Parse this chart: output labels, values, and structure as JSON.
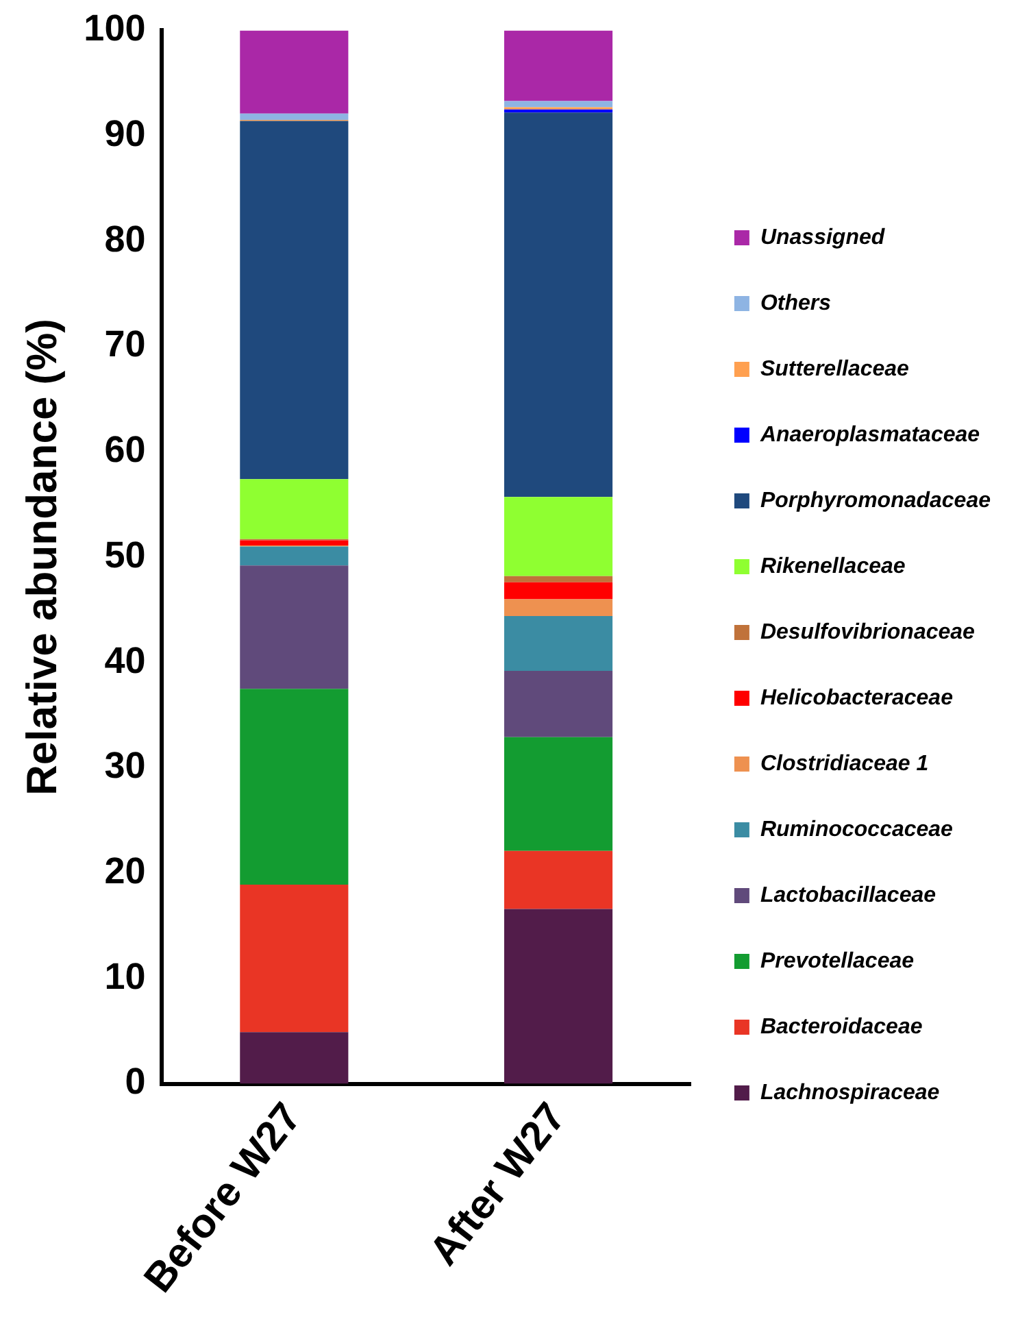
{
  "chart_data": {
    "type": "bar",
    "stacked": true,
    "ylabel": "Relative abundance (%)",
    "categories": [
      "Before W27",
      "After W27"
    ],
    "ylim": [
      0,
      100
    ],
    "yticks": [
      0,
      10,
      20,
      30,
      40,
      50,
      60,
      70,
      80,
      90,
      100
    ],
    "grid": false,
    "legend": "right",
    "series": [
      {
        "name": "Lachnospiraceae",
        "color": "#521c4a",
        "values": [
          4.9,
          16.6
        ]
      },
      {
        "name": "Bacteroidaceae",
        "color": "#e93525",
        "values": [
          14.0,
          5.5
        ]
      },
      {
        "name": "Prevotellaceae",
        "color": "#139c31",
        "values": [
          18.6,
          10.8
        ]
      },
      {
        "name": "Lactobacillaceae",
        "color": "#604a7b",
        "values": [
          11.7,
          6.3
        ]
      },
      {
        "name": "Ruminococcaceae",
        "color": "#3b8ca3",
        "values": [
          1.8,
          5.2
        ]
      },
      {
        "name": "Clostridiaceae 1",
        "color": "#ee9150",
        "values": [
          0.1,
          1.6
        ]
      },
      {
        "name": "Helicobacteraceae",
        "color": "#ff0000",
        "values": [
          0.5,
          1.6
        ]
      },
      {
        "name": "Desulfovibrionaceae",
        "color": "#c0723a",
        "values": [
          0.1,
          0.6
        ]
      },
      {
        "name": "Rikenellaceae",
        "color": "#8fff31",
        "values": [
          5.7,
          7.5
        ]
      },
      {
        "name": "Porphyromonadaceae",
        "color": "#1f497d",
        "values": [
          34.0,
          36.5
        ]
      },
      {
        "name": "Anaeroplasmataceae",
        "color": "#0000ff",
        "values": [
          0,
          0.3
        ]
      },
      {
        "name": "Sutterellaceae",
        "color": "#ffa050",
        "values": [
          0.1,
          0.2
        ]
      },
      {
        "name": "Others",
        "color": "#8eb4e3",
        "values": [
          0.6,
          0.6
        ]
      },
      {
        "name": "Unassigned",
        "color": "#aa28a7",
        "values": [
          7.9,
          6.7
        ]
      }
    ]
  }
}
